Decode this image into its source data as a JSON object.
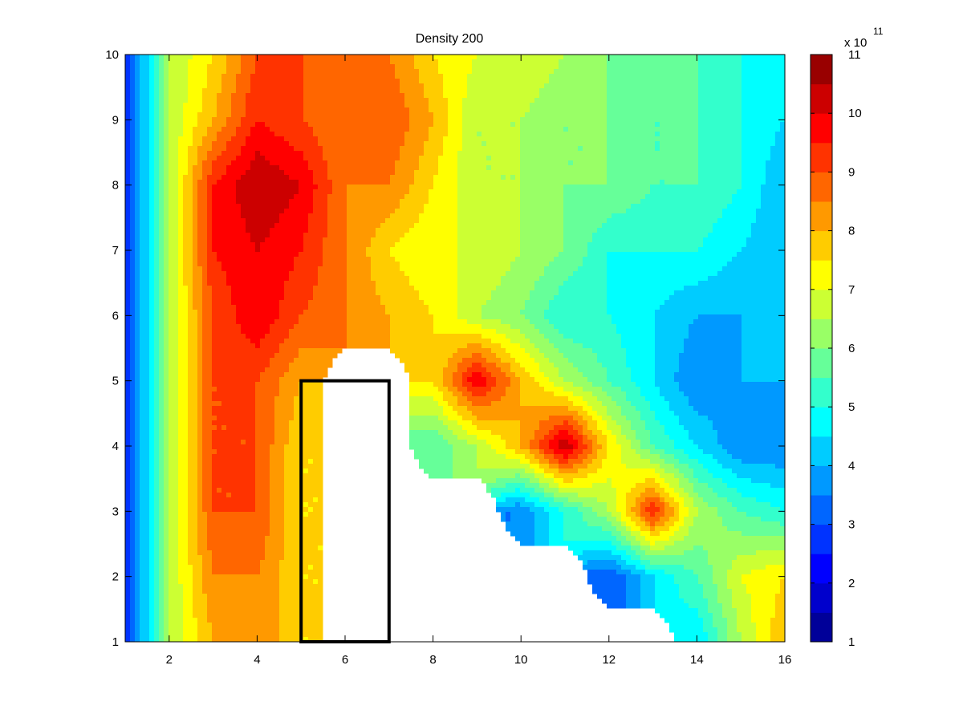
{
  "chart_data": {
    "type": "contourf",
    "title": "Density 200",
    "xlabel": "",
    "ylabel": "",
    "xlim": [
      1,
      16
    ],
    "ylim": [
      1,
      10
    ],
    "xticks": [
      2,
      4,
      6,
      8,
      10,
      12,
      14,
      16
    ],
    "yticks": [
      1,
      2,
      3,
      4,
      5,
      6,
      7,
      8,
      9,
      10
    ],
    "colormap": "jet",
    "colorbar": {
      "min": 1,
      "max": 11,
      "ticks": [
        1,
        2,
        3,
        4,
        5,
        6,
        7,
        8,
        9,
        10,
        11
      ],
      "multiplier_base": "x 10",
      "multiplier_exponent": "11"
    },
    "level_step": 0.5,
    "grid": false,
    "obstacle_rectangle": {
      "x": [
        5,
        7
      ],
      "y": [
        1,
        5
      ]
    },
    "z_values_x1e11": [
      {
        "y": 10,
        "z": [
          2.5,
          6.5,
          7.5,
          9.0,
          9.0,
          8.5,
          8.5,
          7.5,
          7.0,
          7.0,
          6.5,
          6.0,
          6.0,
          5.5,
          5.0,
          4.5
        ]
      },
      {
        "y": 9,
        "z": [
          2.5,
          6.5,
          8.0,
          9.5,
          9.0,
          8.5,
          9.0,
          8.0,
          6.5,
          6.5,
          6.0,
          6.0,
          5.5,
          5.5,
          5.0,
          4.5
        ]
      },
      {
        "y": 8,
        "z": [
          2.5,
          6.5,
          9.5,
          10.5,
          10.0,
          8.5,
          8.5,
          7.5,
          6.5,
          6.5,
          6.0,
          6.0,
          5.5,
          5.5,
          5.0,
          4.0
        ]
      },
      {
        "y": 7,
        "z": [
          2.5,
          6.5,
          9.5,
          10.0,
          9.5,
          8.5,
          7.5,
          7.0,
          7.0,
          6.5,
          6.0,
          5.0,
          5.0,
          5.0,
          4.5,
          4.0
        ]
      },
      {
        "y": 6,
        "z": [
          2.5,
          6.5,
          9.0,
          10.0,
          9.0,
          8.5,
          8.0,
          7.5,
          6.5,
          6.0,
          5.0,
          5.0,
          4.5,
          4.0,
          4.0,
          4.0
        ]
      },
      {
        "y": 5,
        "z": [
          2.5,
          6.5,
          9.0,
          9.0,
          8.0,
          null,
          null,
          7.5,
          10.0,
          8.0,
          6.5,
          5.5,
          4.5,
          3.5,
          4.0,
          4.0
        ]
      },
      {
        "y": 4,
        "z": [
          2.5,
          6.5,
          9.0,
          9.0,
          7.5,
          null,
          null,
          5.5,
          6.5,
          8.0,
          10.5,
          7.5,
          5.5,
          4.5,
          3.5,
          3.5
        ]
      },
      {
        "y": 3,
        "z": [
          2.5,
          6.5,
          9.0,
          9.0,
          7.5,
          null,
          null,
          null,
          null,
          3.5,
          5.0,
          6.5,
          9.5,
          6.5,
          5.5,
          5.0
        ]
      },
      {
        "y": 2,
        "z": [
          2.5,
          6.5,
          8.5,
          8.5,
          7.5,
          null,
          null,
          null,
          null,
          null,
          null,
          3.0,
          4.5,
          5.5,
          7.0,
          7.5
        ]
      },
      {
        "y": 1,
        "z": [
          2.5,
          6.5,
          8.0,
          8.5,
          7.5,
          null,
          null,
          null,
          null,
          null,
          null,
          null,
          null,
          4.5,
          6.5,
          8.0
        ]
      }
    ]
  }
}
